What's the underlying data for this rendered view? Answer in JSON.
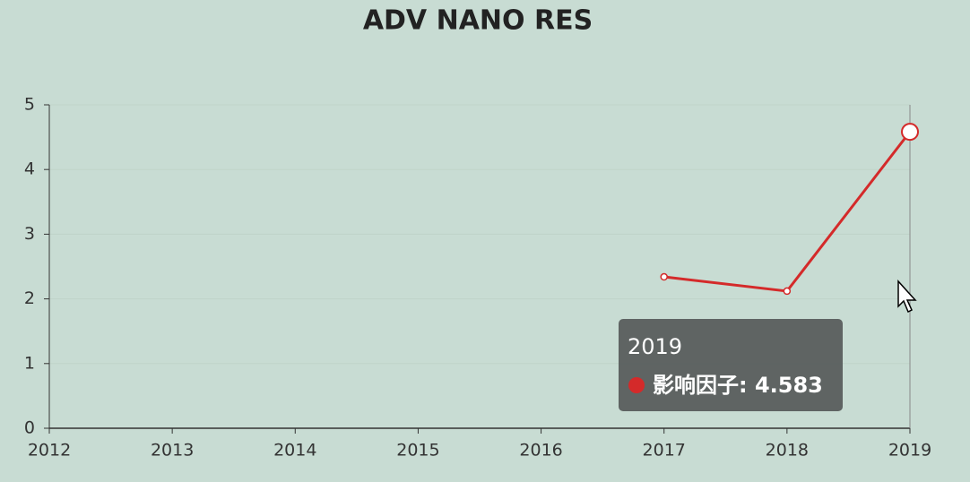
{
  "chart_data": {
    "type": "line",
    "title": "ADV NANO RES",
    "categories": [
      "2012",
      "2013",
      "2014",
      "2015",
      "2016",
      "2017",
      "2018",
      "2019"
    ],
    "series": [
      {
        "name": "影响因子",
        "color": "#d42a2a",
        "values": [
          null,
          null,
          null,
          null,
          null,
          2.34,
          2.12,
          4.583
        ]
      }
    ],
    "ylim": [
      0,
      5
    ],
    "yticks": [
      0,
      1,
      2,
      3,
      4,
      5
    ],
    "grid": true,
    "tooltip": {
      "title": "2019",
      "text": "影响因子: 4.583"
    }
  }
}
